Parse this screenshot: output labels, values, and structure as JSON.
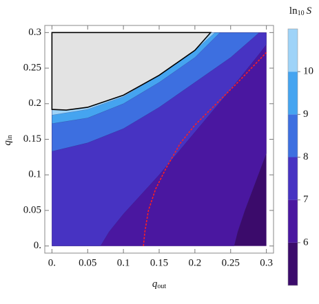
{
  "chart_data": {
    "type": "contour",
    "x_label": {
      "symbol": "q",
      "subscript": "out"
    },
    "y_label": {
      "symbol": "q",
      "subscript": "in"
    },
    "xlim": [
      -0.01,
      0.31
    ],
    "ylim": [
      -0.01,
      0.31
    ],
    "xticks": [
      {
        "value": 0,
        "label": "0."
      },
      0.05,
      0.1,
      0.15,
      0.2,
      0.25,
      0.3
    ],
    "yticks": [
      {
        "value": 0,
        "label": "0."
      },
      0.05,
      0.1,
      0.15,
      0.2,
      0.25,
      0.3
    ],
    "domain": {
      "x": [
        0,
        0.3
      ],
      "y": [
        0,
        0.3
      ]
    },
    "colorbar": {
      "title": {
        "function": "ln",
        "subscript": "10",
        "symbol": "S"
      },
      "lim": [
        5,
        11
      ],
      "ticks": [
        6,
        7,
        8,
        9,
        10
      ],
      "levels": [
        5,
        6,
        7,
        8,
        9,
        10
      ],
      "colors": [
        "#3b0b6b",
        "#4a17a0",
        "#4733c2",
        "#3d6fe0",
        "#45a4f0",
        "#9ed3f8"
      ]
    },
    "contours": [
      {
        "level": 6,
        "x": [
          0.255,
          0.26,
          0.27,
          0.285,
          0.3
        ],
        "y": [
          0,
          0.02,
          0.05,
          0.09,
          0.13
        ]
      },
      {
        "level": 7,
        "x": [
          0.068,
          0.08,
          0.1,
          0.15,
          0.2,
          0.25,
          0.29,
          0.3
        ],
        "y": [
          0,
          0.02,
          0.045,
          0.1,
          0.16,
          0.22,
          0.27,
          0.283
        ]
      },
      {
        "level": 8,
        "x": [
          0,
          0.05,
          0.1,
          0.15,
          0.2,
          0.25,
          0.29
        ],
        "y": [
          0.133,
          0.145,
          0.165,
          0.195,
          0.23,
          0.265,
          0.3
        ]
      },
      {
        "level": 9,
        "x": [
          0,
          0.05,
          0.1,
          0.15,
          0.2,
          0.235
        ],
        "y": [
          0.172,
          0.18,
          0.2,
          0.23,
          0.265,
          0.3
        ]
      },
      {
        "level": 10,
        "x": [
          0,
          0.05,
          0.1,
          0.15,
          0.2,
          0.228
        ],
        "y": [
          0.184,
          0.192,
          0.21,
          0.24,
          0.275,
          0.3
        ]
      }
    ],
    "excluded": {
      "color": "#e3e3e3",
      "x": [
        0,
        0,
        0.02,
        0.05,
        0.1,
        0.15,
        0.2,
        0.222
      ],
      "y": [
        0.3,
        0.192,
        0.191,
        0.195,
        0.212,
        0.24,
        0.275,
        0.3
      ]
    },
    "optimum": {
      "color": "#ff2020",
      "x": [
        0.128,
        0.13,
        0.135,
        0.145,
        0.16,
        0.18,
        0.2,
        0.23,
        0.26,
        0.3
      ],
      "y": [
        0,
        0.02,
        0.05,
        0.08,
        0.11,
        0.145,
        0.17,
        0.2,
        0.23,
        0.272
      ]
    }
  }
}
